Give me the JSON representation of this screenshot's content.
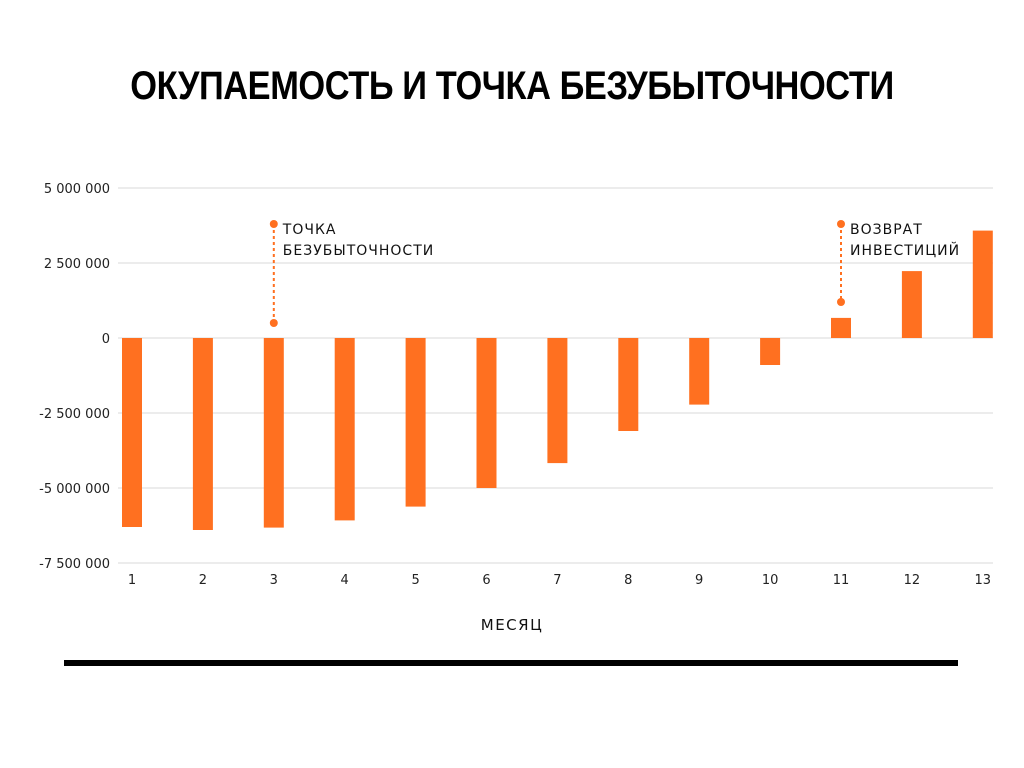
{
  "chart_data": {
    "type": "bar",
    "title": "ОКУПАЕМОСТЬ И ТОЧКА БЕЗУБЫТОЧНОСТИ",
    "xlabel": "МЕСЯЦ",
    "ylabel": "",
    "categories": [
      "1",
      "2",
      "3",
      "4",
      "5",
      "6",
      "7",
      "8",
      "9",
      "10",
      "11",
      "12",
      "13"
    ],
    "values": [
      -6300000,
      -6400000,
      -6320000,
      -6080000,
      -5620000,
      -5000000,
      -4170000,
      -3100000,
      -2220000,
      -900000,
      670000,
      2230000,
      3580000
    ],
    "ylim": [
      -7500000,
      5000000
    ],
    "yticks": [
      5000000,
      2500000,
      0,
      -2500000,
      -5000000,
      -7500000
    ],
    "ytick_labels": [
      "5 000 000",
      "2 500 000",
      "0",
      "-2 500 000",
      "-5 000 000",
      "-7 500 000"
    ],
    "grid": true,
    "bar_color": "#ff7020",
    "grid_color": "#d9d9d9",
    "annotations": [
      {
        "category": "3",
        "y": 500000,
        "lines": [
          "ТОЧКА",
          "БЕЗУБЫТОЧНОСТИ"
        ]
      },
      {
        "category": "11",
        "y": 1200000,
        "lines": [
          "ВОЗВРАТ",
          "ИНВЕСТИЦИЙ"
        ]
      }
    ]
  }
}
